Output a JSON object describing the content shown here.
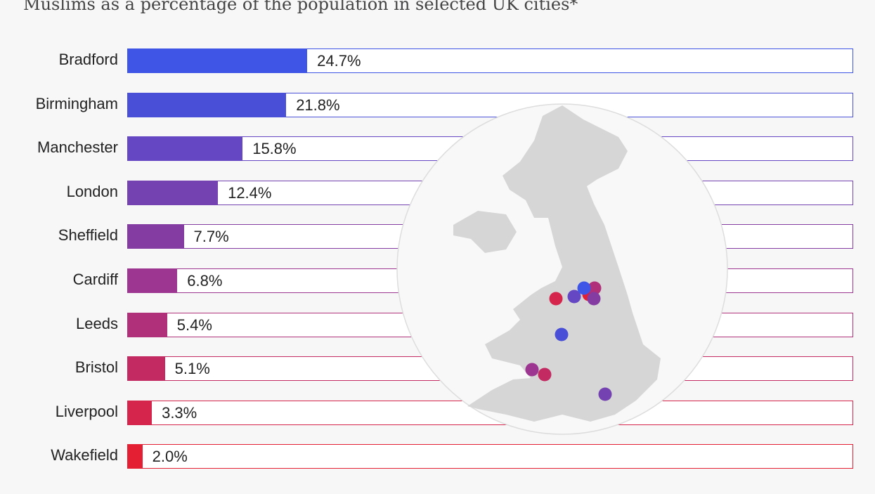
{
  "chart_data": {
    "type": "bar",
    "orientation": "horizontal",
    "title": "Muslims as a percentage of the population in selected UK cities*",
    "categories": [
      "Bradford",
      "Birmingham",
      "Manchester",
      "London",
      "Sheffield",
      "Cardiff",
      "Leeds",
      "Bristol",
      "Liverpool",
      "Wakefield"
    ],
    "values": [
      24.7,
      21.8,
      15.8,
      12.4,
      7.7,
      6.8,
      5.4,
      5.1,
      3.3,
      2.0
    ],
    "labels": [
      "24.7%",
      "21.8%",
      "15.8%",
      "12.4%",
      "7.7%",
      "6.8%",
      "5.4%",
      "5.1%",
      "3.3%",
      "2.0%"
    ],
    "xlim": [
      0,
      100
    ],
    "colors": [
      "#3f55e6",
      "#4a4fd8",
      "#6547c4",
      "#7542b2",
      "#853ca2",
      "#9c3690",
      "#b1307a",
      "#c42a62",
      "#d5254c",
      "#e41f33"
    ],
    "grid": false,
    "inset": "map of UK with city markers"
  }
}
